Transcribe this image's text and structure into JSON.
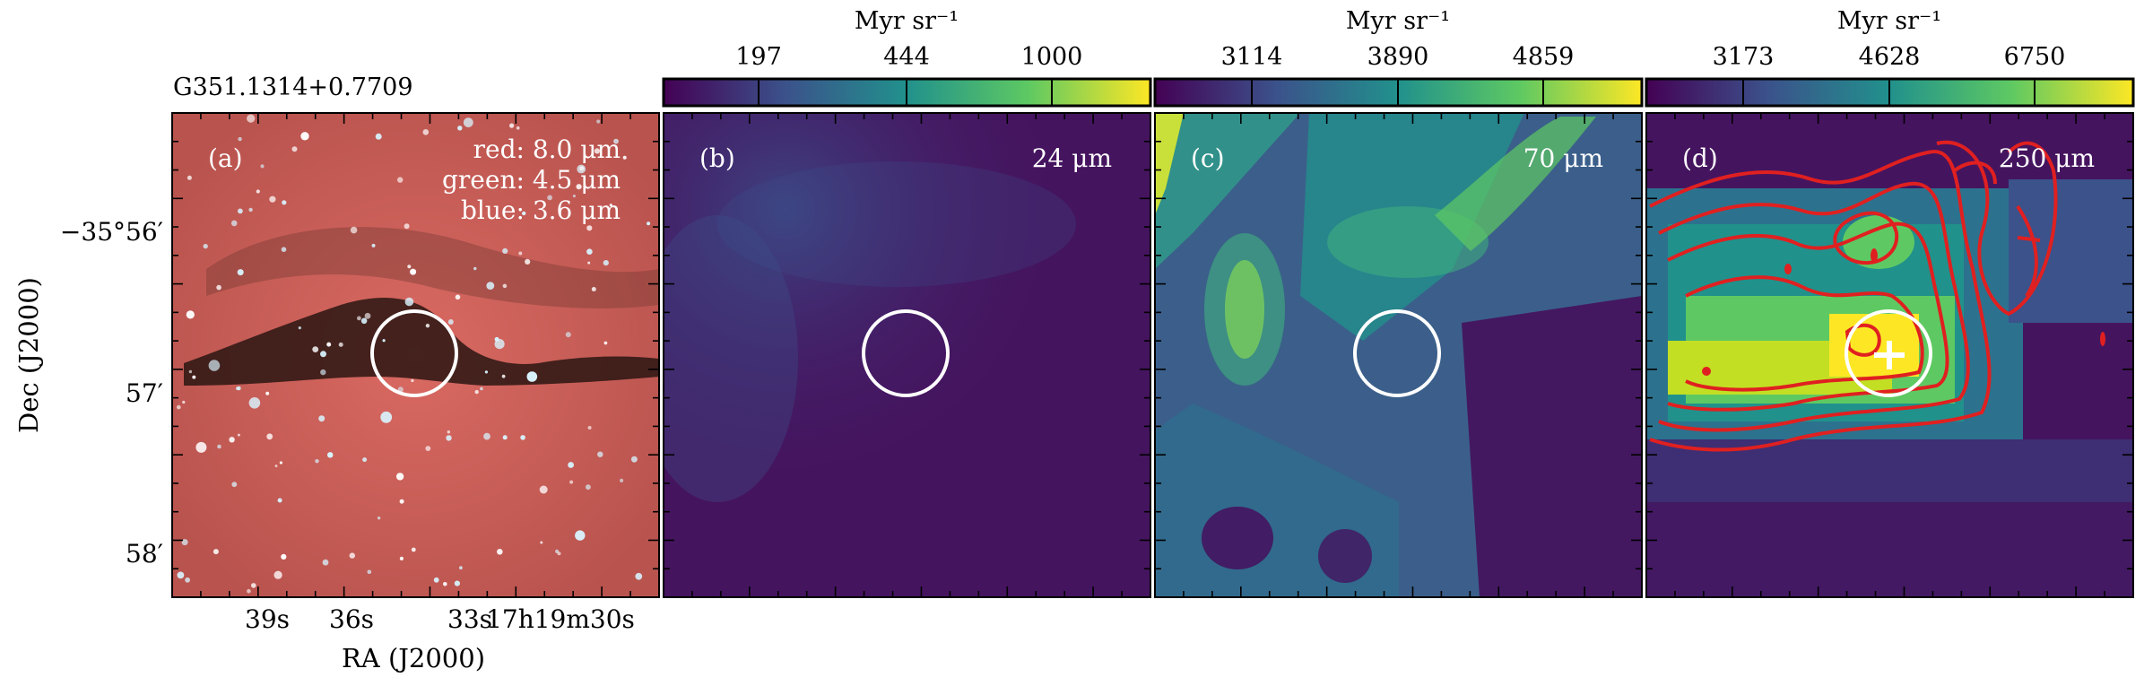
{
  "figure": {
    "source_title": "G351.1314+0.7709",
    "dec_axis_label": "Dec (J2000)",
    "ra_axis_label": "RA (J2000)",
    "dec_ticks": [
      "−35°56′",
      "57′",
      "58′"
    ],
    "ra_ticks": [
      "39s",
      "36s",
      "33s",
      "17h19m30s"
    ]
  },
  "panels": [
    {
      "id": "a",
      "letter": "(a)",
      "legend": [
        "red: 8.0 μm",
        "green: 4.5 μm",
        "blue: 3.6 μm"
      ],
      "colors": {
        "background": "#c85f58",
        "lane": "#1e0f0c"
      }
    },
    {
      "id": "b",
      "letter": "(b)",
      "band": "24 μm",
      "colorbar": {
        "unit": "Myr sr⁻¹",
        "ticks": [
          "197",
          "444",
          "1000"
        ]
      },
      "colors": {
        "background": "#45145f"
      }
    },
    {
      "id": "c",
      "letter": "(c)",
      "band": "70 μm",
      "colorbar": {
        "unit": "Myr sr⁻¹",
        "ticks": [
          "3114",
          "3890",
          "4859"
        ]
      },
      "colors": {
        "background": "#3b5f8a"
      }
    },
    {
      "id": "d",
      "letter": "(d)",
      "band": "250 μm",
      "colorbar": {
        "unit": "Myr sr⁻¹",
        "ticks": [
          "3173",
          "4628",
          "6750"
        ]
      },
      "colors": {
        "background": "#45145f",
        "contours": "#e02020"
      }
    }
  ],
  "colormap": [
    "#440154",
    "#3b528b",
    "#21918c",
    "#5ec962",
    "#fde725"
  ]
}
